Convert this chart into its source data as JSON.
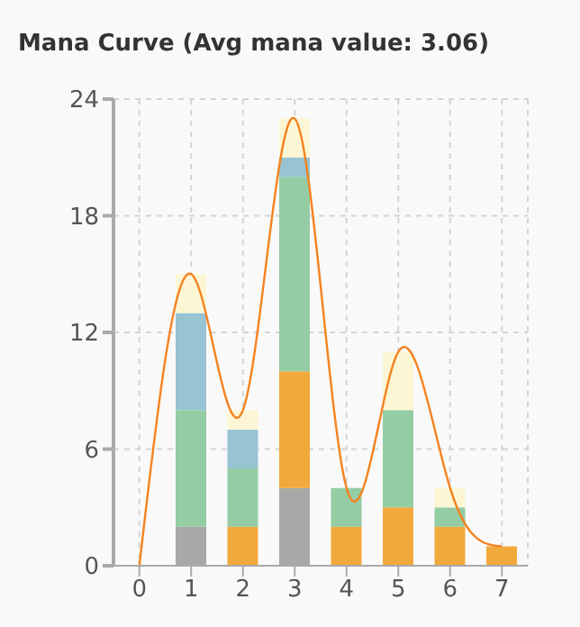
{
  "chart_data": {
    "type": "bar",
    "title": "Mana Curve (Avg mana value: 3.06)",
    "categories": [
      "0",
      "1",
      "2",
      "3",
      "4",
      "5",
      "6",
      "7"
    ],
    "stacked": true,
    "series": [
      {
        "color": "#a8a8a8",
        "values": [
          0,
          2,
          0,
          4,
          0,
          0,
          0,
          0
        ]
      },
      {
        "color": "#f2a93b",
        "values": [
          0,
          0,
          2,
          6,
          2,
          3,
          2,
          1
        ]
      },
      {
        "color": "#94cca4",
        "values": [
          0,
          6,
          3,
          10,
          2,
          5,
          1,
          0
        ]
      },
      {
        "color": "#97c3d3",
        "values": [
          0,
          5,
          2,
          1,
          0,
          0,
          0,
          0
        ]
      },
      {
        "color": "#fcf6d4",
        "values": [
          0,
          2,
          1,
          2,
          0,
          3,
          1,
          0
        ]
      },
      {
        "type": "line",
        "color": "#f5821f",
        "values": [
          0,
          15,
          8,
          23,
          4,
          11,
          4,
          1
        ]
      }
    ],
    "ylim": [
      0,
      24
    ],
    "yticks": [
      0,
      6,
      12,
      18,
      24
    ],
    "grid": true,
    "marker": "none"
  }
}
